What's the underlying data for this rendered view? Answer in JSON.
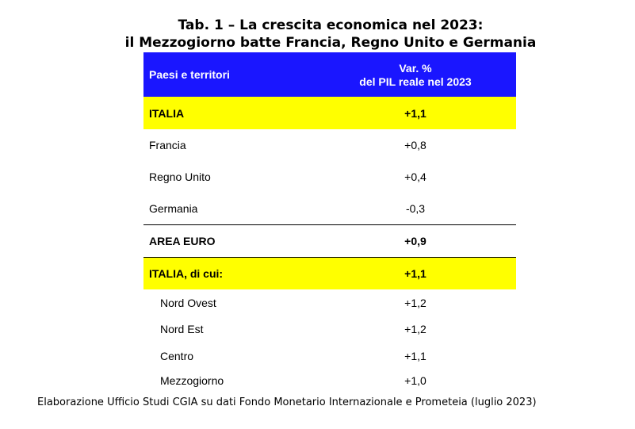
{
  "title": {
    "line1": "Tab. 1 – La crescita economica nel 2023:",
    "line2": "il Mezzogiorno batte Francia, Regno Unito e Germania"
  },
  "table": {
    "header": {
      "col1": "Paesi e territori",
      "col2_line1": "Var. %",
      "col2_line2": "del PIL reale nel 2023"
    },
    "rows": [
      {
        "label": "ITALIA",
        "value": "+1,1",
        "bold": true,
        "highlight": "#ffff00"
      },
      {
        "label": "Francia",
        "value": "+0,8"
      },
      {
        "label": "Regno Unito",
        "value": "+0,4"
      },
      {
        "label": "Germania",
        "value": "-0,3"
      },
      {
        "label": "AREA EURO",
        "value": "+0,9",
        "bold": true
      },
      {
        "label": "ITALIA, di cui:",
        "value": "+1,1",
        "bold": true,
        "highlight": "#ffff00"
      },
      {
        "label": "Nord Ovest",
        "value": "+1,2"
      },
      {
        "label": "Nord Est",
        "value": "+1,2"
      },
      {
        "label": "Centro",
        "value": "+1,1"
      },
      {
        "label": "Mezzogiorno",
        "value": "+1,0"
      }
    ]
  },
  "footer": "Elaborazione Ufficio Studi CGIA su dati Fondo Monetario Internazionale e Prometeia (luglio 2023)",
  "colors": {
    "header_background": "#1a16ff",
    "header_text": "#ffffff",
    "highlight": "#ffff00"
  }
}
